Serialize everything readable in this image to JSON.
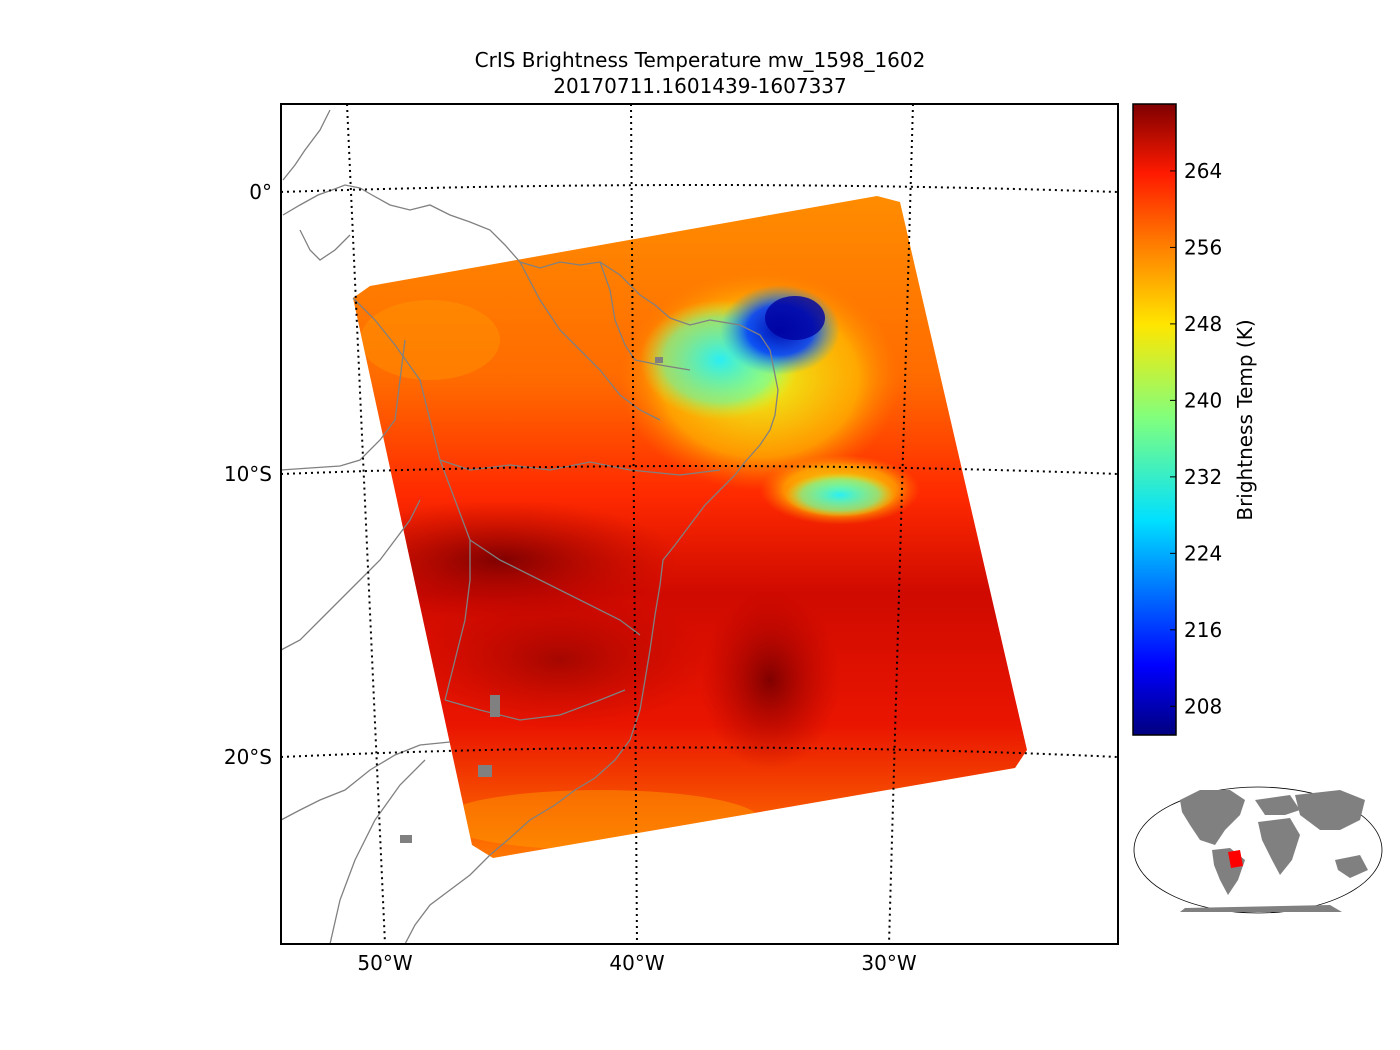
{
  "title": {
    "line1": "CrIS Brightness Temperature mw_1598_1602",
    "line2": "20170711.1601439-1607337"
  },
  "map": {
    "lon_ticks": [
      "50°W",
      "40°W",
      "30°W"
    ],
    "lat_ticks": [
      "0°",
      "10°S",
      "20°S"
    ],
    "graticule_style": "dotted black",
    "coastline_color": "#808080",
    "lake_fill": "#808080"
  },
  "colorbar": {
    "label": "Brightness Temp (K)",
    "ticks": [
      "208",
      "216",
      "224",
      "232",
      "240",
      "248",
      "256",
      "264"
    ],
    "colormap": "jet",
    "range": [
      205,
      271
    ]
  },
  "chart_data": {
    "type": "heatmap",
    "title": "CrIS Brightness Temperature mw_1598_1602 20170711.1601439-1607337",
    "xlabel": "",
    "ylabel": "",
    "x_ticks": [
      "50°W",
      "40°W",
      "30°W"
    ],
    "y_ticks": [
      "0°",
      "10°S",
      "20°S"
    ],
    "colorbar_label": "Brightness Temp (K)",
    "colorbar_ticks": [
      208,
      216,
      224,
      232,
      240,
      248,
      256,
      264
    ],
    "value_range": [
      205,
      271
    ],
    "approx_extent": {
      "lon": [
        -52,
        -25
      ],
      "lat": [
        -24,
        -0.5
      ]
    },
    "features": [
      {
        "name": "cold cloud core",
        "lon": -33.5,
        "lat": -5.2,
        "value": 210
      },
      {
        "name": "cold cloud band",
        "lon": -31.5,
        "lat": -11,
        "value": 228
      },
      {
        "name": "warm maximum",
        "lon": -35,
        "lat": -18.5,
        "value": 270
      },
      {
        "name": "warm band",
        "lon": -44,
        "lat": -13,
        "value": 266
      },
      {
        "name": "northern edge",
        "lon": -40,
        "lat": -2,
        "value": 256
      }
    ]
  },
  "inset": {
    "projection": "global overview",
    "land_color": "#808080",
    "highlight_color": "#ff0000"
  }
}
